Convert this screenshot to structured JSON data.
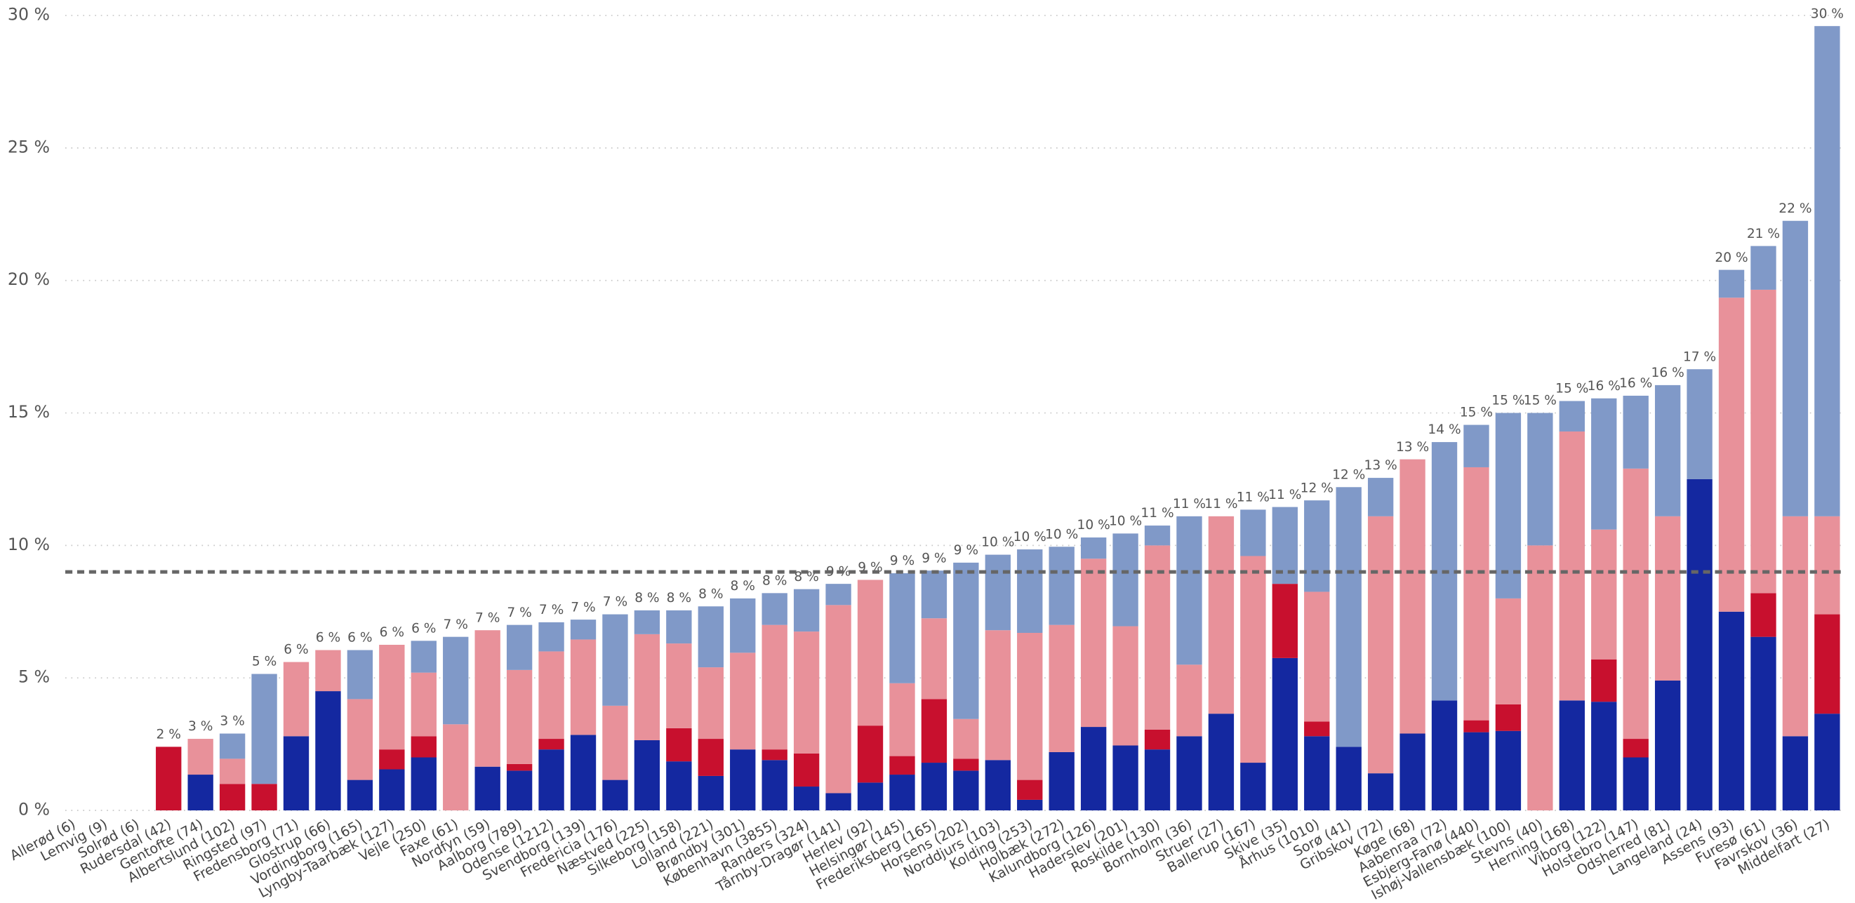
{
  "chart_data": {
    "type": "stacked_bar",
    "categories": [
      "Allerød (6)",
      "Lemvig (9)",
      "Solrød (6)",
      "Rudersdal (42)",
      "Gentofte (74)",
      "Albertslund (102)",
      "Ringsted (97)",
      "Fredensborg (71)",
      "Glostrup (66)",
      "Vordingborg (165)",
      "Lyngby-Taarbæk (127)",
      "Vejle (250)",
      "Faxe (61)",
      "Nordfyn (59)",
      "Aalborg (789)",
      "Odense (1212)",
      "Svendborg (139)",
      "Fredericia (176)",
      "Næstved (225)",
      "Silkeborg (158)",
      "Lolland (221)",
      "Brøndby (301)",
      "København (3855)",
      "Randers (324)",
      "Tårnby-Dragør (141)",
      "Herlev (92)",
      "Helsingør (145)",
      "Frederiksberg (165)",
      "Horsens (202)",
      "Norddjurs (103)",
      "Kolding (253)",
      "Holbæk (272)",
      "Kalundborg (126)",
      "Haderslev (201)",
      "Roskilde (130)",
      "Bornholm (36)",
      "Struer (27)",
      "Ballerup (167)",
      "Skive (35)",
      "Århus (1010)",
      "Sorø (41)",
      "Gribskov (72)",
      "Køge (68)",
      "Aabenraa (72)",
      "Esbjerg-Fanø (440)",
      "Ishøj-Vallensbæk (100)",
      "Stevns (40)",
      "Herning (168)",
      "Viborg (122)",
      "Holstebro (147)",
      "Odsherred (81)",
      "Langeland (24)",
      "Assens (93)",
      "Furesø (61)",
      "Favrskov (36)",
      "Middelfart (27)"
    ],
    "series": [
      {
        "color": "#1428a0",
        "values": [
          0,
          0,
          0,
          0,
          1.35,
          0,
          0,
          2.8,
          4.5,
          1.15,
          1.55,
          2.0,
          0,
          1.65,
          1.5,
          2.3,
          2.85,
          1.15,
          2.65,
          1.85,
          1.3,
          2.3,
          1.9,
          0.9,
          0.65,
          1.05,
          1.35,
          1.8,
          1.5,
          1.9,
          0.4,
          2.2,
          3.15,
          2.45,
          2.3,
          2.8,
          3.65,
          1.8,
          5.75,
          2.8,
          2.4,
          1.4,
          2.9,
          4.15,
          2.95,
          3.0,
          0,
          4.15,
          4.1,
          2.0,
          4.9,
          12.5,
          7.5,
          6.55,
          2.8,
          3.65
        ]
      },
      {
        "color": "#c8102e",
        "values": [
          0,
          0,
          0,
          2.4,
          0,
          1.0,
          1.0,
          0,
          0,
          0,
          0.75,
          0.8,
          0,
          0,
          0.25,
          0.4,
          0,
          0,
          0,
          1.25,
          1.4,
          0,
          0.4,
          1.25,
          0,
          2.15,
          0.7,
          2.4,
          0.45,
          0,
          0.75,
          0,
          0,
          0,
          0.75,
          0,
          0,
          0,
          2.8,
          0.55,
          0,
          0,
          0,
          0,
          0.45,
          1.0,
          0,
          0,
          1.6,
          0.7,
          0,
          0,
          0,
          1.65,
          0,
          3.75
        ]
      },
      {
        "color": "#e8919a",
        "values": [
          0,
          0,
          0,
          0,
          1.35,
          0.95,
          0,
          2.8,
          1.55,
          3.05,
          3.95,
          2.4,
          3.25,
          5.15,
          3.55,
          3.3,
          3.6,
          2.8,
          4.0,
          3.2,
          2.7,
          3.65,
          4.7,
          4.6,
          7.1,
          5.5,
          2.75,
          3.05,
          1.5,
          4.9,
          5.55,
          4.8,
          6.35,
          4.5,
          6.95,
          2.7,
          7.45,
          7.8,
          0,
          4.9,
          0,
          9.7,
          10.35,
          0,
          9.55,
          4.0,
          10.0,
          10.15,
          4.9,
          10.2,
          6.2,
          0,
          11.85,
          11.45,
          8.3,
          3.7
        ]
      },
      {
        "color": "#8099c8",
        "values": [
          0,
          0,
          0,
          0,
          0,
          0.95,
          4.15,
          0,
          0,
          1.85,
          0,
          1.2,
          3.3,
          0,
          1.7,
          1.1,
          0.75,
          3.45,
          0.9,
          1.25,
          2.3,
          2.05,
          1.2,
          1.6,
          0.8,
          0,
          4.15,
          1.8,
          5.9,
          2.85,
          3.15,
          2.95,
          0.8,
          3.5,
          0.75,
          5.6,
          0,
          1.75,
          2.9,
          3.45,
          9.8,
          1.45,
          0,
          9.75,
          1.6,
          7.0,
          5.0,
          1.15,
          4.95,
          2.75,
          4.95,
          4.15,
          1.05,
          1.65,
          11.15,
          18.5
        ]
      }
    ],
    "totals": [
      null,
      null,
      null,
      2.4,
      2.7,
      2.9,
      5.15,
      5.6,
      6.05,
      6.05,
      6.25,
      6.4,
      6.55,
      6.8,
      7.0,
      7.1,
      7.2,
      7.4,
      7.55,
      7.55,
      7.7,
      8.0,
      8.2,
      8.35,
      8.55,
      8.7,
      8.95,
      9.05,
      9.35,
      9.65,
      9.85,
      9.95,
      10.3,
      10.45,
      10.75,
      11.1,
      11.1,
      11.35,
      11.45,
      11.7,
      12.2,
      12.55,
      13.25,
      13.9,
      14.55,
      15.0,
      15.0,
      15.45,
      15.55,
      15.65,
      16.05,
      16.65,
      20.4,
      21.3,
      22.25,
      29.6
    ],
    "total_labels": [
      null,
      null,
      null,
      "2 %",
      "3 %",
      "3 %",
      "5 %",
      "6 %",
      "6 %",
      "6 %",
      "6 %",
      "6 %",
      "7 %",
      "7 %",
      "7 %",
      "7 %",
      "7 %",
      "7 %",
      "8 %",
      "8 %",
      "8 %",
      "8 %",
      "8 %",
      "8 %",
      "9 %",
      "9 %",
      "9 %",
      "9 %",
      "9 %",
      "10 %",
      "10 %",
      "10 %",
      "10 %",
      "10 %",
      "11 %",
      "11 %",
      "11 %",
      "11 %",
      "11 %",
      "12 %",
      "12 %",
      "13 %",
      "13 %",
      "14 %",
      "15 %",
      "15 %",
      "15 %",
      "15 %",
      "16 %",
      "16 %",
      "16 %",
      "17 %",
      "20 %",
      "21 %",
      "22 %",
      "30 %"
    ],
    "ylim": [
      0,
      30
    ],
    "yticks": [
      {
        "value": 0,
        "label": "0 %"
      },
      {
        "value": 5,
        "label": "5 %"
      },
      {
        "value": 10,
        "label": "10 %"
      },
      {
        "value": 15,
        "label": "15 %"
      },
      {
        "value": 20,
        "label": "20 %"
      },
      {
        "value": 25,
        "label": "25 %"
      },
      {
        "value": 30,
        "label": "30 %"
      }
    ],
    "grid": true,
    "reference_line": 9
  }
}
